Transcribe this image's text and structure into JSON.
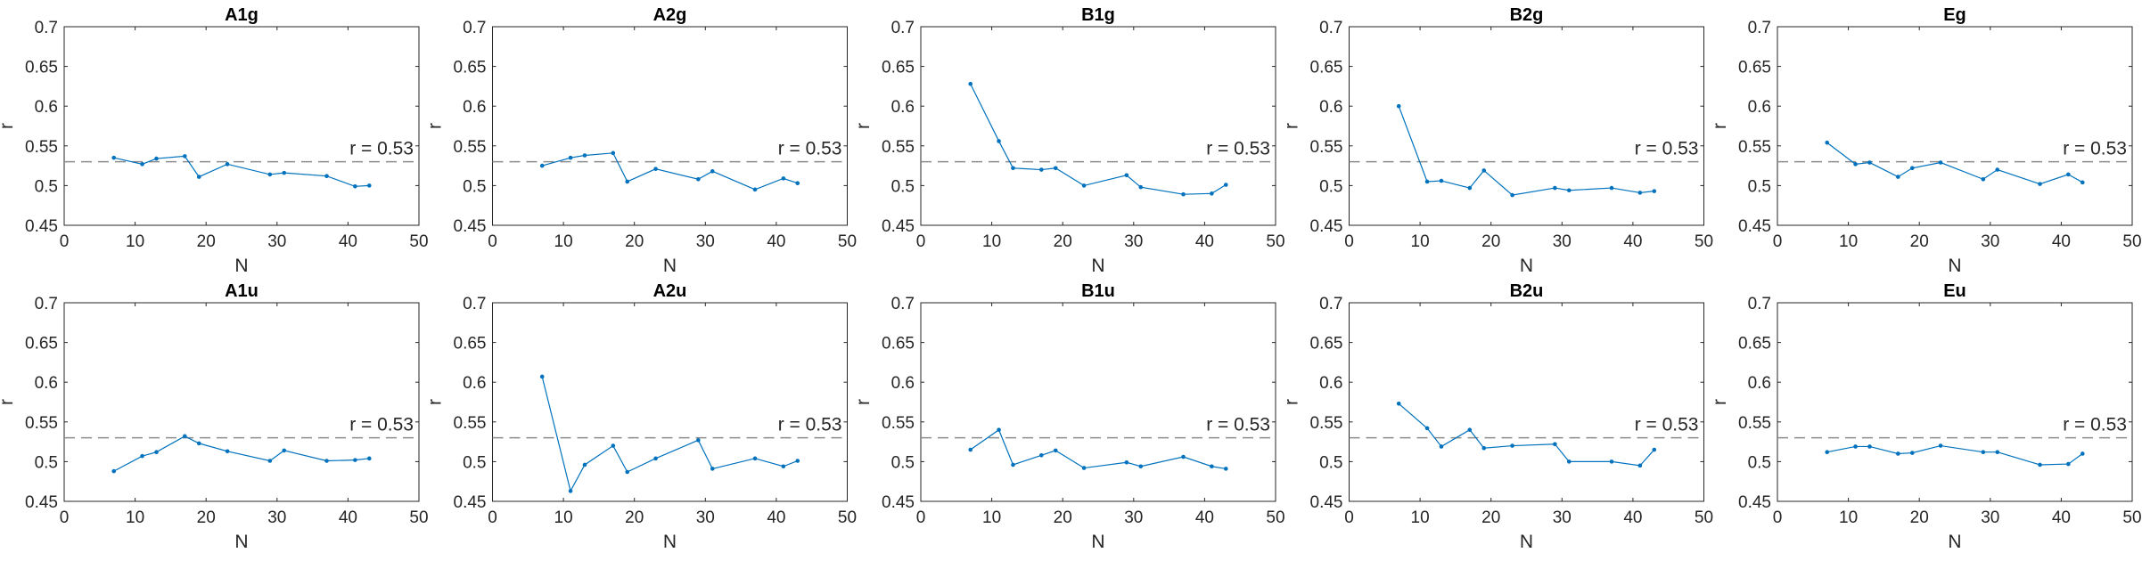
{
  "chart_data": [
    {
      "type": "line",
      "title": "A1g",
      "xlabel": "N",
      "ylabel": "r",
      "x": [
        7,
        11,
        13,
        17,
        19,
        23,
        29,
        31,
        37,
        41,
        43
      ],
      "values": [
        0.535,
        0.527,
        0.534,
        0.537,
        0.511,
        0.527,
        0.514,
        0.516,
        0.512,
        0.499,
        0.5
      ],
      "color": "#0072bd",
      "ref_value": 0.53,
      "ref_label": "r = 0.53",
      "xlim": [
        0,
        50
      ],
      "xticks": [
        0,
        10,
        20,
        30,
        40,
        50
      ],
      "ylim": [
        0.45,
        0.7
      ],
      "yticks": [
        0.45,
        0.5,
        0.55,
        0.6,
        0.65,
        0.7
      ]
    },
    {
      "type": "line",
      "title": "A2g",
      "xlabel": "N",
      "ylabel": "r",
      "x": [
        7,
        11,
        13,
        17,
        19,
        23,
        29,
        31,
        37,
        41,
        43
      ],
      "values": [
        0.525,
        0.535,
        0.538,
        0.541,
        0.505,
        0.521,
        0.508,
        0.518,
        0.495,
        0.509,
        0.503
      ],
      "color": "#0072bd",
      "ref_value": 0.53,
      "ref_label": "r = 0.53",
      "xlim": [
        0,
        50
      ],
      "xticks": [
        0,
        10,
        20,
        30,
        40,
        50
      ],
      "ylim": [
        0.45,
        0.7
      ],
      "yticks": [
        0.45,
        0.5,
        0.55,
        0.6,
        0.65,
        0.7
      ]
    },
    {
      "type": "line",
      "title": "B1g",
      "xlabel": "N",
      "ylabel": "r",
      "x": [
        7,
        11,
        13,
        17,
        19,
        23,
        29,
        31,
        37,
        41,
        43
      ],
      "values": [
        0.628,
        0.556,
        0.522,
        0.52,
        0.522,
        0.5,
        0.513,
        0.498,
        0.489,
        0.49,
        0.501
      ],
      "color": "#0072bd",
      "ref_value": 0.53,
      "ref_label": "r = 0.53",
      "xlim": [
        0,
        50
      ],
      "xticks": [
        0,
        10,
        20,
        30,
        40,
        50
      ],
      "ylim": [
        0.45,
        0.7
      ],
      "yticks": [
        0.45,
        0.5,
        0.55,
        0.6,
        0.65,
        0.7
      ]
    },
    {
      "type": "line",
      "title": "B2g",
      "xlabel": "N",
      "ylabel": "r",
      "x": [
        7,
        11,
        13,
        17,
        19,
        23,
        29,
        31,
        37,
        41,
        43
      ],
      "values": [
        0.6,
        0.505,
        0.506,
        0.497,
        0.519,
        0.488,
        0.497,
        0.494,
        0.497,
        0.491,
        0.493
      ],
      "color": "#0072bd",
      "ref_value": 0.53,
      "ref_label": "r = 0.53",
      "xlim": [
        0,
        50
      ],
      "xticks": [
        0,
        10,
        20,
        30,
        40,
        50
      ],
      "ylim": [
        0.45,
        0.7
      ],
      "yticks": [
        0.45,
        0.5,
        0.55,
        0.6,
        0.65,
        0.7
      ]
    },
    {
      "type": "line",
      "title": "Eg",
      "xlabel": "N",
      "ylabel": "r",
      "x": [
        7,
        11,
        13,
        17,
        19,
        23,
        29,
        31,
        37,
        41,
        43
      ],
      "values": [
        0.554,
        0.527,
        0.529,
        0.511,
        0.522,
        0.529,
        0.508,
        0.52,
        0.502,
        0.514,
        0.504
      ],
      "color": "#0072bd",
      "ref_value": 0.53,
      "ref_label": "r = 0.53",
      "xlim": [
        0,
        50
      ],
      "xticks": [
        0,
        10,
        20,
        30,
        40,
        50
      ],
      "ylim": [
        0.45,
        0.7
      ],
      "yticks": [
        0.45,
        0.5,
        0.55,
        0.6,
        0.65,
        0.7
      ]
    },
    {
      "type": "line",
      "title": "A1u",
      "xlabel": "N",
      "ylabel": "r",
      "x": [
        7,
        11,
        13,
        17,
        19,
        23,
        29,
        31,
        37,
        41,
        43
      ],
      "values": [
        0.488,
        0.507,
        0.512,
        0.532,
        0.523,
        0.513,
        0.501,
        0.514,
        0.501,
        0.502,
        0.504
      ],
      "color": "#0072bd",
      "ref_value": 0.53,
      "ref_label": "r = 0.53",
      "xlim": [
        0,
        50
      ],
      "xticks": [
        0,
        10,
        20,
        30,
        40,
        50
      ],
      "ylim": [
        0.45,
        0.7
      ],
      "yticks": [
        0.45,
        0.5,
        0.55,
        0.6,
        0.65,
        0.7
      ]
    },
    {
      "type": "line",
      "title": "A2u",
      "xlabel": "N",
      "ylabel": "r",
      "x": [
        7,
        11,
        13,
        17,
        19,
        23,
        29,
        31,
        37,
        41,
        43
      ],
      "values": [
        0.607,
        0.463,
        0.496,
        0.52,
        0.487,
        0.504,
        0.527,
        0.491,
        0.504,
        0.494,
        0.501
      ],
      "color": "#0072bd",
      "ref_value": 0.53,
      "ref_label": "r = 0.53",
      "xlim": [
        0,
        50
      ],
      "xticks": [
        0,
        10,
        20,
        30,
        40,
        50
      ],
      "ylim": [
        0.45,
        0.7
      ],
      "yticks": [
        0.45,
        0.5,
        0.55,
        0.6,
        0.65,
        0.7
      ]
    },
    {
      "type": "line",
      "title": "B1u",
      "xlabel": "N",
      "ylabel": "r",
      "x": [
        7,
        11,
        13,
        17,
        19,
        23,
        29,
        31,
        37,
        41,
        43
      ],
      "values": [
        0.515,
        0.54,
        0.496,
        0.508,
        0.514,
        0.492,
        0.499,
        0.494,
        0.506,
        0.494,
        0.491
      ],
      "color": "#0072bd",
      "ref_value": 0.53,
      "ref_label": "r = 0.53",
      "xlim": [
        0,
        50
      ],
      "xticks": [
        0,
        10,
        20,
        30,
        40,
        50
      ],
      "ylim": [
        0.45,
        0.7
      ],
      "yticks": [
        0.45,
        0.5,
        0.55,
        0.6,
        0.65,
        0.7
      ]
    },
    {
      "type": "line",
      "title": "B2u",
      "xlabel": "N",
      "ylabel": "r",
      "x": [
        7,
        11,
        13,
        17,
        19,
        23,
        29,
        31,
        37,
        41,
        43
      ],
      "values": [
        0.573,
        0.542,
        0.519,
        0.54,
        0.517,
        0.52,
        0.522,
        0.5,
        0.5,
        0.495,
        0.515
      ],
      "color": "#0072bd",
      "ref_value": 0.53,
      "ref_label": "r = 0.53",
      "xlim": [
        0,
        50
      ],
      "xticks": [
        0,
        10,
        20,
        30,
        40,
        50
      ],
      "ylim": [
        0.45,
        0.7
      ],
      "yticks": [
        0.45,
        0.5,
        0.55,
        0.6,
        0.65,
        0.7
      ]
    },
    {
      "type": "line",
      "title": "Eu",
      "xlabel": "N",
      "ylabel": "r",
      "x": [
        7,
        11,
        13,
        17,
        19,
        23,
        29,
        31,
        37,
        41,
        43
      ],
      "values": [
        0.512,
        0.519,
        0.519,
        0.51,
        0.511,
        0.52,
        0.512,
        0.512,
        0.496,
        0.497,
        0.51
      ],
      "color": "#0072bd",
      "ref_value": 0.53,
      "ref_label": "r = 0.53",
      "xlim": [
        0,
        50
      ],
      "xticks": [
        0,
        10,
        20,
        30,
        40,
        50
      ],
      "ylim": [
        0.45,
        0.7
      ],
      "yticks": [
        0.45,
        0.5,
        0.55,
        0.6,
        0.65,
        0.7
      ]
    }
  ]
}
